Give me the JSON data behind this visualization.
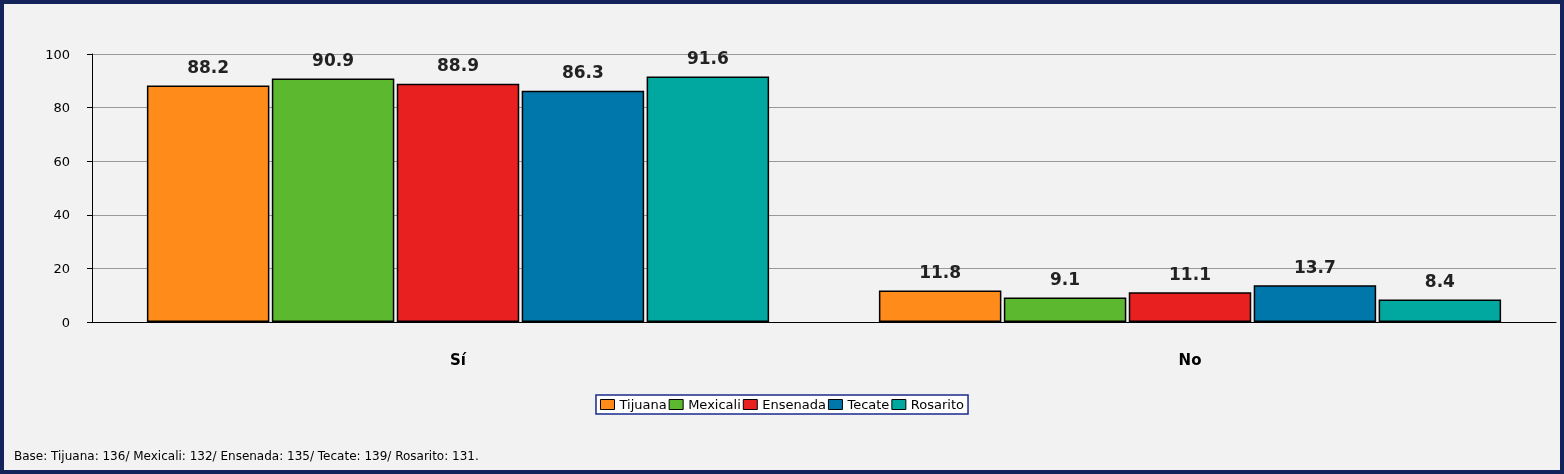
{
  "chart_data": {
    "type": "bar",
    "categories": [
      "Sí",
      "No"
    ],
    "series": [
      {
        "name": "Tijuana",
        "color": "#ff8c1a",
        "values": [
          88.2,
          11.8
        ]
      },
      {
        "name": "Mexicali",
        "color": "#5cb82e",
        "values": [
          90.9,
          9.1
        ]
      },
      {
        "name": "Ensenada",
        "color": "#e82020",
        "values": [
          88.9,
          11.1
        ]
      },
      {
        "name": "Tecate",
        "color": "#0077aa",
        "values": [
          86.3,
          13.7
        ]
      },
      {
        "name": "Rosarito",
        "color": "#00a8a0",
        "values": [
          91.6,
          8.4
        ]
      }
    ],
    "ylim": [
      0,
      100
    ],
    "yticks": [
      0,
      20,
      40,
      60,
      80,
      100
    ],
    "grid": "y",
    "legend": "bottom",
    "data_labels": true,
    "annotations": [
      "Base: Tijuana: 136/ Mexicali: 132/ Ensenada: 135/ Tecate: 139/ Rosarito: 131."
    ]
  }
}
